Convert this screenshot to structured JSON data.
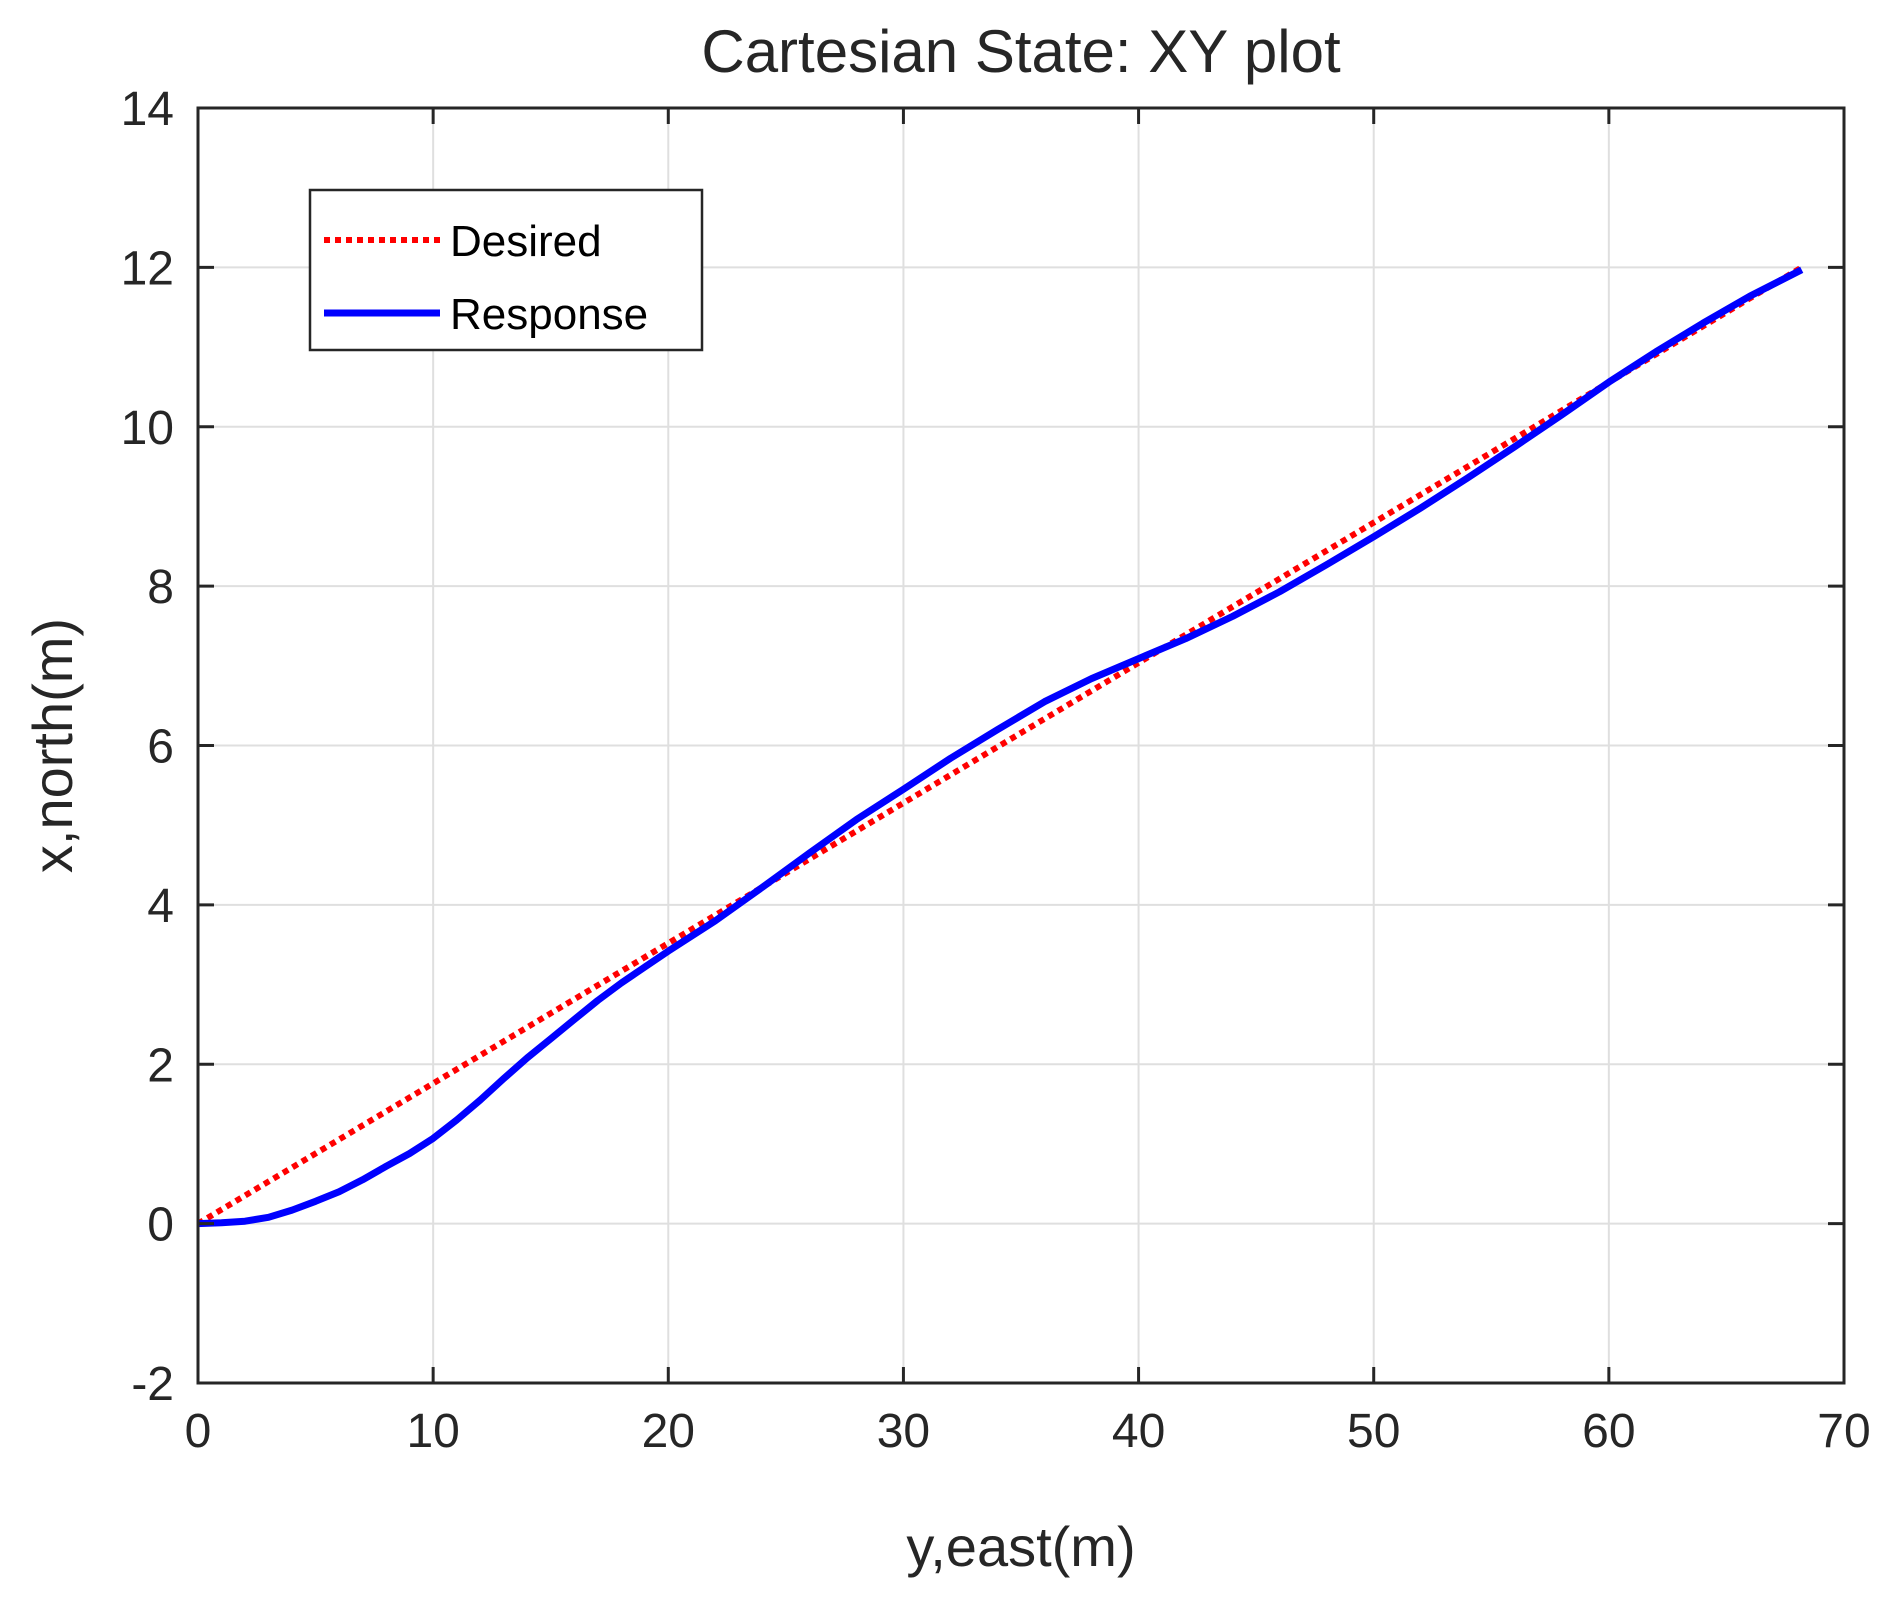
{
  "chart_data": {
    "type": "line",
    "title": "Cartesian State: XY plot",
    "xlabel": "y,east(m)",
    "ylabel": "x,north(m)",
    "xlim": [
      0,
      70
    ],
    "ylim": [
      -2,
      14
    ],
    "xticks": [
      0,
      10,
      20,
      30,
      40,
      50,
      60,
      70
    ],
    "yticks": [
      -2,
      0,
      2,
      4,
      6,
      8,
      10,
      12,
      14
    ],
    "grid": true,
    "legend_position": "top-left",
    "series": [
      {
        "name": "Desired",
        "style": "dotted",
        "color": "#ff0000",
        "x": [
          0,
          68.2
        ],
        "y": [
          0,
          12.0
        ]
      },
      {
        "name": "Response",
        "style": "solid",
        "color": "#0000ff",
        "x": [
          0,
          1,
          2,
          3,
          4,
          5,
          6,
          7,
          8,
          9,
          10,
          11,
          12,
          13,
          14,
          15,
          16,
          17,
          18,
          19,
          20,
          22,
          24,
          26,
          28,
          30,
          32,
          34,
          36,
          38,
          40,
          42,
          44,
          46,
          48,
          50,
          52,
          54,
          56,
          58,
          60,
          62,
          64,
          66,
          68.2
        ],
        "y": [
          0,
          0.01,
          0.03,
          0.08,
          0.17,
          0.28,
          0.4,
          0.55,
          0.72,
          0.88,
          1.07,
          1.3,
          1.55,
          1.82,
          2.08,
          2.32,
          2.56,
          2.8,
          3.02,
          3.22,
          3.42,
          3.8,
          4.22,
          4.65,
          5.07,
          5.45,
          5.84,
          6.2,
          6.55,
          6.84,
          7.09,
          7.34,
          7.62,
          7.93,
          8.27,
          8.62,
          8.98,
          9.36,
          9.75,
          10.15,
          10.56,
          10.94,
          11.3,
          11.64,
          11.97
        ]
      }
    ]
  }
}
